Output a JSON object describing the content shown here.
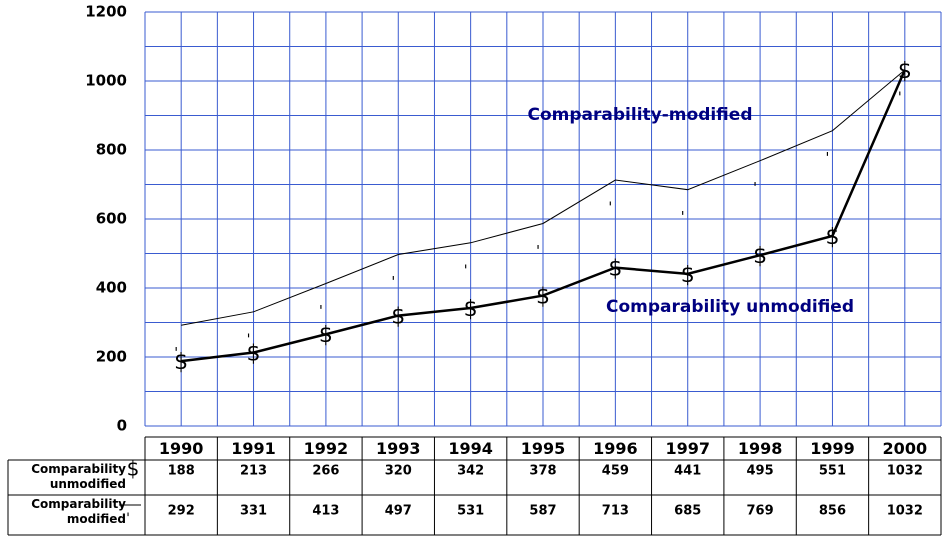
{
  "chart_data": {
    "type": "line",
    "categories": [
      "1990",
      "1991",
      "1992",
      "1993",
      "1994",
      "1995",
      "1996",
      "1997",
      "1998",
      "1999",
      "2000"
    ],
    "series": [
      {
        "name": "Comparability unmodified",
        "color": "#000000",
        "marker": "$",
        "values": [
          188,
          213,
          266,
          320,
          342,
          378,
          459,
          441,
          495,
          551,
          1032
        ]
      },
      {
        "name": "Comparability modified",
        "color": "#000000",
        "marker": "'",
        "values": [
          292,
          331,
          413,
          497,
          531,
          587,
          713,
          685,
          769,
          856,
          1032
        ]
      }
    ],
    "annotations": [
      "Comparability-modified",
      "Comparability unmodified"
    ],
    "ylim": [
      0,
      1200
    ],
    "yticks": [
      0,
      200,
      400,
      600,
      800,
      1000,
      1200
    ],
    "grid": true
  }
}
